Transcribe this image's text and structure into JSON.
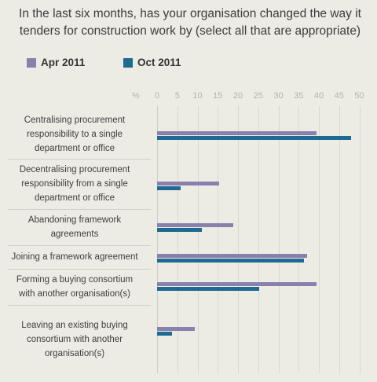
{
  "title_lines": [
    "In the last six months, has your organisation changed the way it",
    "tenders for construction work by (select all that are appropriate)"
  ],
  "chart_data": {
    "type": "bar",
    "orientation": "horizontal",
    "title": "In the last six months, has your organisation changed the way it tenders for construction work by (select all that are appropriate)",
    "axis_unit": "%",
    "xlim": [
      0,
      50
    ],
    "ticks": [
      "0",
      "5",
      "10",
      "15",
      "20",
      "25",
      "30",
      "35",
      "40",
      "45",
      "50"
    ],
    "legend_position": "top-left",
    "categories": [
      [
        "Centralising procurement",
        "responsibility to a single",
        "department or office"
      ],
      [
        "Decentralising procurement",
        "responsibility from a single",
        "department or office"
      ],
      [
        "Abandoning framework",
        "agreements"
      ],
      [
        "Joining a framework agreement"
      ],
      [
        "Forming a buying consortium",
        "with another organisation(s)"
      ],
      [
        "Leaving an existing buying",
        "consortium with another",
        "organisation(s)"
      ]
    ],
    "series": [
      {
        "name": "Apr 2011",
        "color": "#8a80ad",
        "values": [
          39.5,
          15.3,
          18.8,
          37,
          39.5,
          9.3
        ]
      },
      {
        "name": "Oct 2011",
        "color": "#1f6a93",
        "values": [
          48,
          5.8,
          11,
          36.3,
          25.3,
          3.7
        ]
      }
    ]
  }
}
